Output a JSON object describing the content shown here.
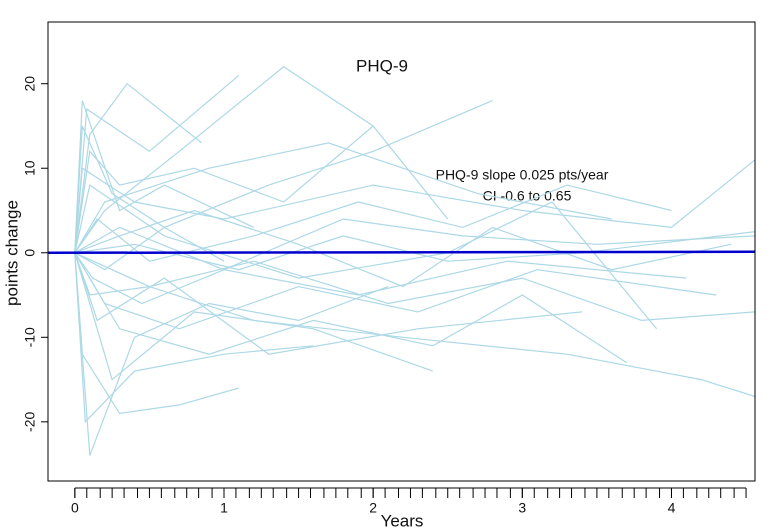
{
  "chart_data": {
    "type": "line",
    "title": "PHQ-9",
    "annotation": [
      "PHQ-9 slope 0.025 pts/year",
      "CI -0.6 to 0.65"
    ],
    "xlabel": "Years",
    "ylabel": "points change",
    "xlim": [
      -0.18,
      4.56
    ],
    "ylim": [
      -27,
      27.3
    ],
    "xticks": [
      0,
      1,
      2,
      3,
      4
    ],
    "xminorticks": [
      0,
      0.08,
      0.17,
      0.25,
      0.33,
      0.42,
      0.5,
      0.58,
      0.67,
      0.75,
      0.83,
      0.92,
      1,
      1.08,
      1.17,
      1.25,
      1.33,
      1.42,
      1.5,
      1.58,
      1.67,
      1.75,
      1.83,
      1.92,
      2,
      2.08,
      2.17,
      2.25,
      2.33,
      2.42,
      2.5,
      2.58,
      2.67,
      2.75,
      2.83,
      2.92,
      3,
      3.08,
      3.17,
      3.25,
      3.33,
      3.42,
      3.5,
      3.58,
      3.67,
      3.75,
      3.83,
      3.92,
      4,
      4.08,
      4.17,
      4.25,
      4.33,
      4.42,
      4.5
    ],
    "yticks": [
      -20,
      -10,
      0,
      10,
      20
    ],
    "line_color": "#add8e6",
    "series": [
      {
        "x": [
          0,
          0.05,
          0.3,
          0.6,
          1.2
        ],
        "values": [
          0,
          18,
          5,
          8,
          3
        ]
      },
      {
        "x": [
          0,
          0.1,
          0.4,
          0.9,
          1.5,
          2.1
        ],
        "values": [
          0,
          -24,
          -10,
          -6,
          -8,
          -4
        ]
      },
      {
        "x": [
          0,
          0.08,
          0.5,
          1.1
        ],
        "values": [
          0,
          17,
          12,
          21
        ]
      },
      {
        "x": [
          0,
          0.2,
          0.7,
          1.4,
          2.0,
          2.5
        ],
        "values": [
          0,
          5,
          12,
          22,
          15,
          4
        ]
      },
      {
        "x": [
          0,
          0.15,
          0.6,
          1.3,
          2.3,
          3.4
        ],
        "values": [
          0,
          -8,
          -3,
          -12,
          -9,
          -7
        ]
      },
      {
        "x": [
          0,
          0.3,
          1.0,
          1.8,
          2.6,
          3.5,
          4.56
        ],
        "values": [
          0,
          3,
          -2,
          4,
          2,
          1,
          2
        ]
      },
      {
        "x": [
          0,
          0.1,
          0.5,
          1.2,
          2.2,
          3.3,
          4.2,
          4.56
        ],
        "values": [
          0,
          -5,
          -4,
          -8,
          -10,
          -12,
          -15,
          -17
        ]
      },
      {
        "x": [
          0,
          0.05,
          0.4,
          1.0,
          2.0,
          3.0,
          4.0,
          4.56
        ],
        "values": [
          0,
          10,
          6,
          4,
          8,
          5,
          3,
          11
        ]
      },
      {
        "x": [
          0,
          0.25,
          0.8,
          1.6,
          2.4
        ],
        "values": [
          0,
          -15,
          -7,
          -9,
          -14
        ]
      },
      {
        "x": [
          0,
          0.1,
          0.6,
          1.5,
          2.5,
          3.2,
          3.9
        ],
        "values": [
          0,
          8,
          2,
          -3,
          0,
          6,
          -9
        ]
      },
      {
        "x": [
          0,
          0.05,
          0.3,
          0.7,
          1.1
        ],
        "values": [
          0,
          -12,
          -19,
          -18,
          -16
        ]
      },
      {
        "x": [
          0,
          0.2,
          0.9,
          1.7,
          2.7,
          3.6
        ],
        "values": [
          0,
          6,
          10,
          13,
          7,
          4
        ]
      },
      {
        "x": [
          0,
          0.12,
          0.45,
          1.0,
          1.9,
          2.9,
          4.1
        ],
        "values": [
          0,
          -3,
          -6,
          -2,
          -5,
          -1,
          -3
        ]
      },
      {
        "x": [
          0,
          0.3,
          0.8,
          1.5,
          2.2,
          2.8,
          3.6,
          4.4
        ],
        "values": [
          0,
          2,
          5,
          1,
          -4,
          3,
          -2,
          1
        ]
      },
      {
        "x": [
          0,
          0.1,
          0.35,
          0.85
        ],
        "values": [
          0,
          14,
          20,
          13
        ]
      },
      {
        "x": [
          0,
          0.2,
          0.6,
          1.3,
          2.0,
          2.8
        ],
        "values": [
          0,
          -2,
          3,
          8,
          12,
          18
        ]
      },
      {
        "x": [
          0,
          0.5,
          1.2,
          2.1,
          3.0,
          3.8,
          4.56
        ],
        "values": [
          0,
          -4,
          -1,
          -6,
          -3,
          -8,
          -7
        ]
      },
      {
        "x": [
          0,
          0.07,
          0.4,
          1.0,
          1.6
        ],
        "values": [
          0,
          -20,
          -14,
          -12,
          -11
        ]
      },
      {
        "x": [
          0,
          0.15,
          0.5,
          1.2,
          1.9,
          2.6,
          3.3,
          4.0
        ],
        "values": [
          0,
          4,
          -1,
          2,
          6,
          3,
          8,
          5
        ]
      },
      {
        "x": [
          0,
          0.1,
          0.3,
          0.8,
          1.4,
          2.0
        ],
        "values": [
          0,
          12,
          8,
          10,
          6,
          15
        ]
      },
      {
        "x": [
          0,
          0.2,
          0.7,
          1.5,
          2.3,
          3.1,
          4.3
        ],
        "values": [
          0,
          -6,
          -9,
          -4,
          -7,
          -2,
          -5
        ]
      },
      {
        "x": [
          0,
          0.4,
          1.1,
          1.8,
          2.5,
          3.4,
          4.56
        ],
        "values": [
          0,
          1,
          -2,
          2,
          -1,
          0,
          2.5
        ]
      },
      {
        "x": [
          0,
          0.05,
          0.25,
          0.6,
          1.0
        ],
        "values": [
          0,
          15,
          7,
          3,
          -1
        ]
      },
      {
        "x": [
          0,
          0.3,
          0.9,
          1.6,
          2.4,
          3.0,
          3.7
        ],
        "values": [
          0,
          -9,
          -12,
          -8,
          -11,
          -5,
          -13
        ]
      }
    ],
    "fit": {
      "x": [
        -0.18,
        4.56
      ],
      "values": [
        -0.005,
        0.114
      ],
      "color": "#0000cd"
    }
  }
}
